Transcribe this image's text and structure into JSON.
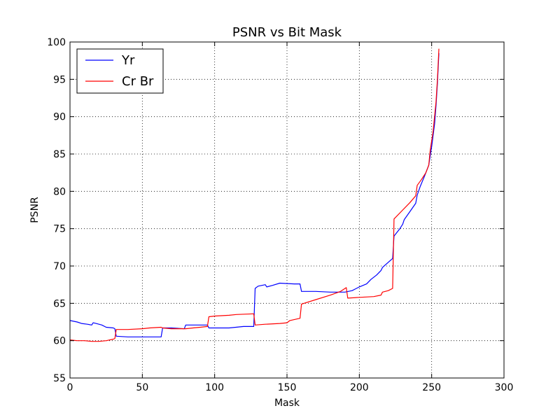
{
  "chart_data": {
    "type": "line",
    "title": "PSNR vs Bit Mask",
    "xlabel": "Mask",
    "ylabel": "PSNR",
    "xlim": [
      0,
      300
    ],
    "ylim": [
      55,
      100
    ],
    "xticks": [
      0,
      50,
      100,
      150,
      200,
      250,
      300
    ],
    "yticks": [
      55,
      60,
      65,
      70,
      75,
      80,
      85,
      90,
      95,
      100
    ],
    "grid": true,
    "legend_position": "top-left",
    "series": [
      {
        "name": "Yr",
        "color": "#0000ff",
        "points": [
          [
            0,
            62.7
          ],
          [
            5,
            62.5
          ],
          [
            8,
            62.3
          ],
          [
            12,
            62.2
          ],
          [
            15,
            62.1
          ],
          [
            16,
            62.4
          ],
          [
            18,
            62.3
          ],
          [
            22,
            62.1
          ],
          [
            25,
            61.8
          ],
          [
            30,
            61.7
          ],
          [
            31,
            61.6
          ],
          [
            32,
            60.6
          ],
          [
            40,
            60.5
          ],
          [
            50,
            60.5
          ],
          [
            60,
            60.5
          ],
          [
            63,
            60.5
          ],
          [
            64,
            61.7
          ],
          [
            70,
            61.7
          ],
          [
            79,
            61.6
          ],
          [
            80,
            62.1
          ],
          [
            90,
            62.1
          ],
          [
            95,
            62.1
          ],
          [
            96,
            61.7
          ],
          [
            110,
            61.7
          ],
          [
            120,
            61.9
          ],
          [
            127,
            61.9
          ],
          [
            128,
            67.0
          ],
          [
            130,
            67.3
          ],
          [
            135,
            67.5
          ],
          [
            136,
            67.2
          ],
          [
            140,
            67.4
          ],
          [
            145,
            67.7
          ],
          [
            155,
            67.6
          ],
          [
            159,
            67.6
          ],
          [
            160,
            66.6
          ],
          [
            170,
            66.6
          ],
          [
            180,
            66.5
          ],
          [
            190,
            66.5
          ],
          [
            195,
            66.7
          ],
          [
            200,
            67.2
          ],
          [
            205,
            67.6
          ],
          [
            208,
            68.2
          ],
          [
            212,
            68.8
          ],
          [
            215,
            69.4
          ],
          [
            216,
            69.8
          ],
          [
            220,
            70.5
          ],
          [
            223,
            71.0
          ],
          [
            224,
            74.0
          ],
          [
            228,
            75.0
          ],
          [
            230,
            75.6
          ],
          [
            231,
            76.2
          ],
          [
            235,
            77.3
          ],
          [
            239,
            78.4
          ],
          [
            240,
            79.5
          ],
          [
            242,
            80.6
          ],
          [
            245,
            82.0
          ],
          [
            248,
            83.5
          ],
          [
            250,
            86.0
          ],
          [
            252,
            89.0
          ],
          [
            253,
            91.5
          ],
          [
            254,
            94.5
          ],
          [
            255,
            98.5
          ]
        ]
      },
      {
        "name": "Cr Br",
        "color": "#ff0000",
        "points": [
          [
            0,
            60.1
          ],
          [
            5,
            60.0
          ],
          [
            10,
            60.0
          ],
          [
            15,
            59.9
          ],
          [
            20,
            59.9
          ],
          [
            25,
            60.0
          ],
          [
            30,
            60.2
          ],
          [
            31,
            60.3
          ],
          [
            32,
            61.5
          ],
          [
            40,
            61.5
          ],
          [
            50,
            61.6
          ],
          [
            55,
            61.7
          ],
          [
            63,
            61.8
          ],
          [
            64,
            61.7
          ],
          [
            70,
            61.6
          ],
          [
            80,
            61.6
          ],
          [
            85,
            61.7
          ],
          [
            90,
            61.8
          ],
          [
            95,
            61.9
          ],
          [
            96,
            63.2
          ],
          [
            100,
            63.3
          ],
          [
            110,
            63.4
          ],
          [
            115,
            63.5
          ],
          [
            127,
            63.6
          ],
          [
            128,
            62.1
          ],
          [
            135,
            62.2
          ],
          [
            145,
            62.3
          ],
          [
            150,
            62.4
          ],
          [
            152,
            62.7
          ],
          [
            159,
            63.0
          ],
          [
            160,
            64.9
          ],
          [
            170,
            65.5
          ],
          [
            180,
            66.1
          ],
          [
            187,
            66.6
          ],
          [
            191,
            67.1
          ],
          [
            192,
            65.7
          ],
          [
            200,
            65.8
          ],
          [
            210,
            65.9
          ],
          [
            215,
            66.1
          ],
          [
            216,
            66.5
          ],
          [
            220,
            66.7
          ],
          [
            223,
            67.0
          ],
          [
            224,
            76.3
          ],
          [
            230,
            77.5
          ],
          [
            235,
            78.5
          ],
          [
            239,
            79.4
          ],
          [
            240,
            80.8
          ],
          [
            243,
            81.6
          ],
          [
            246,
            82.5
          ],
          [
            248,
            83.5
          ],
          [
            249,
            85.5
          ],
          [
            251,
            88.0
          ],
          [
            252,
            90.0
          ],
          [
            253,
            92.0
          ],
          [
            254,
            95.0
          ],
          [
            255,
            99.1
          ]
        ]
      }
    ]
  }
}
